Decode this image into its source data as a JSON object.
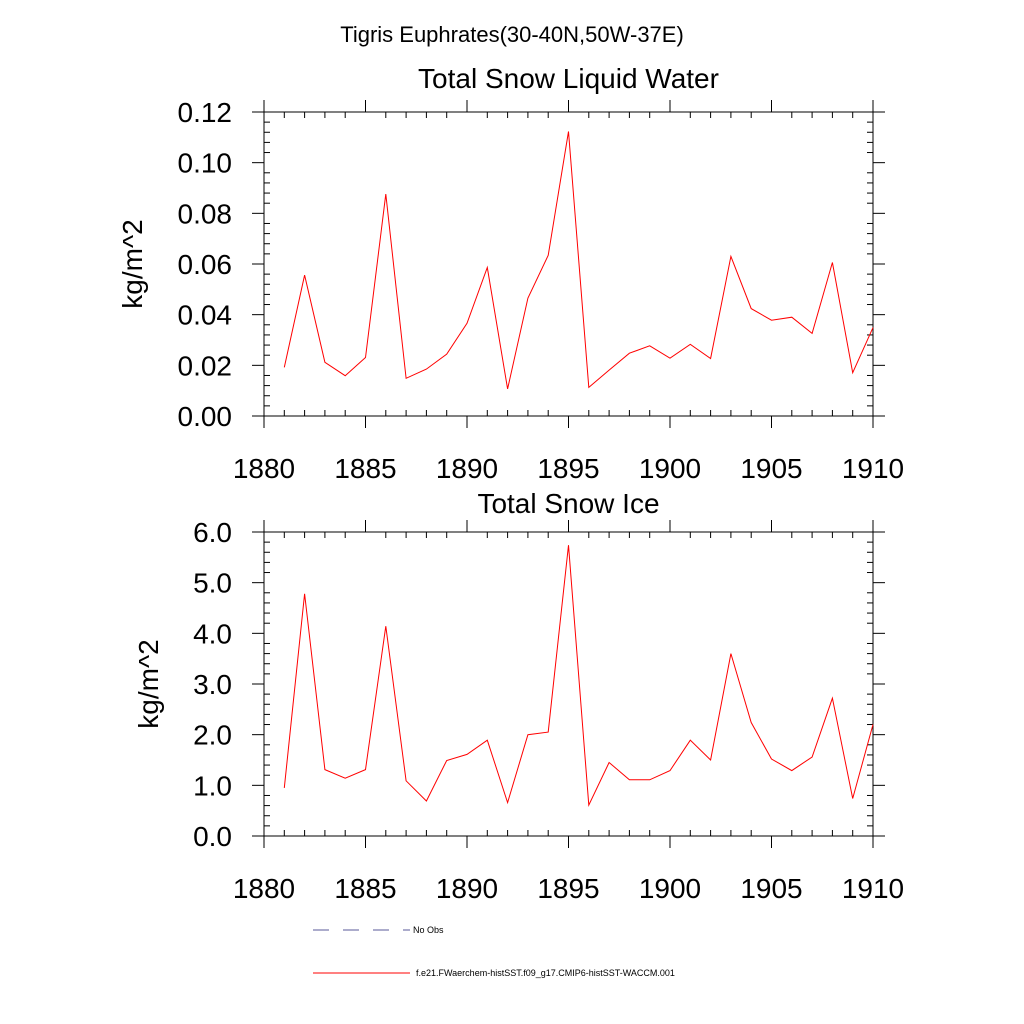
{
  "figure": {
    "suptitle": "Tigris Euphrates(30-40N,50W-37E)",
    "legend": [
      {
        "label": "No Obs",
        "color": "#5a5a9a",
        "style": "dashed"
      },
      {
        "label": "f.e21.FWaerchem-histSST.f09_g17.CMIP6-histSST-WACCM.001",
        "color": "#ff0000",
        "style": "solid"
      }
    ]
  },
  "chart_data": [
    {
      "type": "line",
      "title": "Total Snow Liquid Water",
      "xlabel": "",
      "ylabel": "kg/m^2",
      "xlim": [
        1880,
        1910
      ],
      "ylim": [
        0,
        0.12
      ],
      "xticks": [
        1880,
        1885,
        1890,
        1895,
        1900,
        1905,
        1910
      ],
      "xtick_labels": [
        "1880",
        "1885",
        "1890",
        "1895",
        "1900",
        "1905",
        "1910"
      ],
      "yticks": [
        0,
        0.02,
        0.04,
        0.06,
        0.08,
        0.1,
        0.12
      ],
      "ytick_labels": [
        "0.00",
        "0.02",
        "0.04",
        "0.06",
        "0.08",
        "0.10",
        "0.12"
      ],
      "grid": false,
      "x": [
        1881,
        1882,
        1883,
        1884,
        1885,
        1886,
        1887,
        1888,
        1889,
        1890,
        1891,
        1892,
        1893,
        1894,
        1895,
        1896,
        1897,
        1898,
        1899,
        1900,
        1901,
        1902,
        1903,
        1904,
        1905,
        1906,
        1907,
        1908,
        1909,
        1910
      ],
      "series": [
        {
          "color": "#ff0000",
          "values": [
            0.0192,
            0.0556,
            0.0212,
            0.0159,
            0.0231,
            0.0876,
            0.0149,
            0.0185,
            0.0244,
            0.0366,
            0.0586,
            0.0107,
            0.0465,
            0.0634,
            0.1123,
            0.0113,
            0.0181,
            0.0248,
            0.0277,
            0.0228,
            0.0283,
            0.0227,
            0.063,
            0.0424,
            0.0378,
            0.039,
            0.0326,
            0.0606,
            0.0171,
            0.0349
          ]
        }
      ]
    },
    {
      "type": "line",
      "title": "Total Snow Ice",
      "xlabel": "",
      "ylabel": "kg/m^2",
      "xlim": [
        1880,
        1910
      ],
      "ylim": [
        0,
        6.0
      ],
      "xticks": [
        1880,
        1885,
        1890,
        1895,
        1900,
        1905,
        1910
      ],
      "xtick_labels": [
        "1880",
        "1885",
        "1890",
        "1895",
        "1900",
        "1905",
        "1910"
      ],
      "yticks": [
        0,
        1,
        2,
        3,
        4,
        5,
        6
      ],
      "ytick_labels": [
        "0.0",
        "1.0",
        "2.0",
        "3.0",
        "4.0",
        "5.0",
        "6.0"
      ],
      "grid": false,
      "x": [
        1881,
        1882,
        1883,
        1884,
        1885,
        1886,
        1887,
        1888,
        1889,
        1890,
        1891,
        1892,
        1893,
        1894,
        1895,
        1896,
        1897,
        1898,
        1899,
        1900,
        1901,
        1902,
        1903,
        1904,
        1905,
        1906,
        1907,
        1908,
        1909,
        1910
      ],
      "series": [
        {
          "color": "#ff0000",
          "values": [
            0.95,
            4.78,
            1.31,
            1.14,
            1.31,
            4.14,
            1.09,
            0.69,
            1.49,
            1.61,
            1.89,
            0.66,
            2.0,
            2.05,
            5.74,
            0.61,
            1.45,
            1.11,
            1.11,
            1.29,
            1.89,
            1.5,
            3.6,
            2.24,
            1.52,
            1.29,
            1.56,
            2.72,
            0.74,
            2.2
          ]
        }
      ]
    }
  ]
}
